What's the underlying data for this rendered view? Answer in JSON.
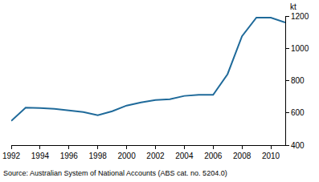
{
  "chart_data": {
    "type": "line",
    "y_label": "kt",
    "source": "Source: Australian System of National Accounts (ABS cat. no. 5204.0)",
    "x": [
      1992,
      1993,
      1994,
      1995,
      1996,
      1997,
      1998,
      1999,
      2000,
      2001,
      2002,
      2003,
      2004,
      2005,
      2006,
      2007,
      2008,
      2009,
      2010,
      2011
    ],
    "values": [
      550,
      632,
      630,
      625,
      615,
      605,
      585,
      610,
      645,
      665,
      680,
      685,
      705,
      712,
      712,
      840,
      1075,
      1190,
      1190,
      1160
    ],
    "color": "#1f6a9a",
    "xlim": [
      1992,
      2011
    ],
    "xticks": [
      1992,
      1994,
      1996,
      1998,
      2000,
      2002,
      2004,
      2006,
      2008,
      2010
    ],
    "ylim": [
      400,
      1200
    ],
    "yticks": [
      400,
      600,
      800,
      1000,
      1200
    ],
    "grid": false
  }
}
